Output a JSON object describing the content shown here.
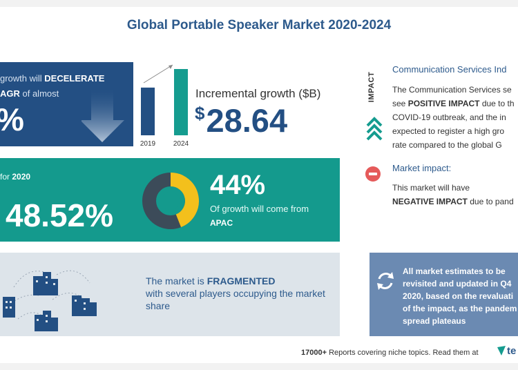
{
  "title": "Global Portable Speaker Market 2020-2024",
  "growth_panel": {
    "line1_prefix": "growth will ",
    "line1_bold": "DECELERATE",
    "line2_bold": "AGR",
    "line2_rest": " of almost",
    "value": "%"
  },
  "bar_chart": {
    "categories": [
      "2019",
      "2024"
    ],
    "values": [
      0.72,
      1.0
    ],
    "colors": [
      "#234f83",
      "#159c8f"
    ]
  },
  "incremental": {
    "label": "Incremental growth ($B)",
    "currency": "$",
    "value": "28.64"
  },
  "yoy_panel": {
    "label_prefix": "for ",
    "label_year": "2020",
    "value": "48.52%",
    "donut_share": 0.44,
    "donut_colors": [
      "#f3c01c",
      "#3c4b59"
    ],
    "region_pct": "44%",
    "region_text": "Of growth will come from",
    "region_name": "APAC"
  },
  "fragmented_panel": {
    "prefix": "The market is ",
    "bold": "FRAGMENTED",
    "rest": "with several players occupying the market share"
  },
  "impact": {
    "vertical_label": "IMPACT",
    "section_title": "Communication Services Ind",
    "lines": [
      {
        "plain": "The Communication Services se"
      },
      {
        "plain": "see ",
        "bold": "POSITIVE IMPACT",
        "rest": " due to th"
      },
      {
        "plain": "COVID-19 outbreak, and the in"
      },
      {
        "plain": "expected to register a high gro"
      },
      {
        "plain": "rate compared to the global G"
      }
    ],
    "market_impact_title": "Market impact:",
    "market_line1": "This market will have",
    "market_bold": "NEGATIVE IMPACT",
    "market_rest": " due to pand"
  },
  "note_panel": {
    "lines": [
      "All market estimates to be",
      "revisited and updated in Q4",
      "2020, based on the revaluati",
      "of the impact, as the pandem",
      "spread plateaus"
    ]
  },
  "footer": {
    "count": "17000+",
    "text": " Reports covering niche topics. Read them at",
    "brand": "te"
  },
  "colors": {
    "navy": "#234f83",
    "teal": "#149a8d",
    "grey_panel": "#dde4ea",
    "slate_panel": "#6b8ab2",
    "title": "#2d5a8c"
  }
}
